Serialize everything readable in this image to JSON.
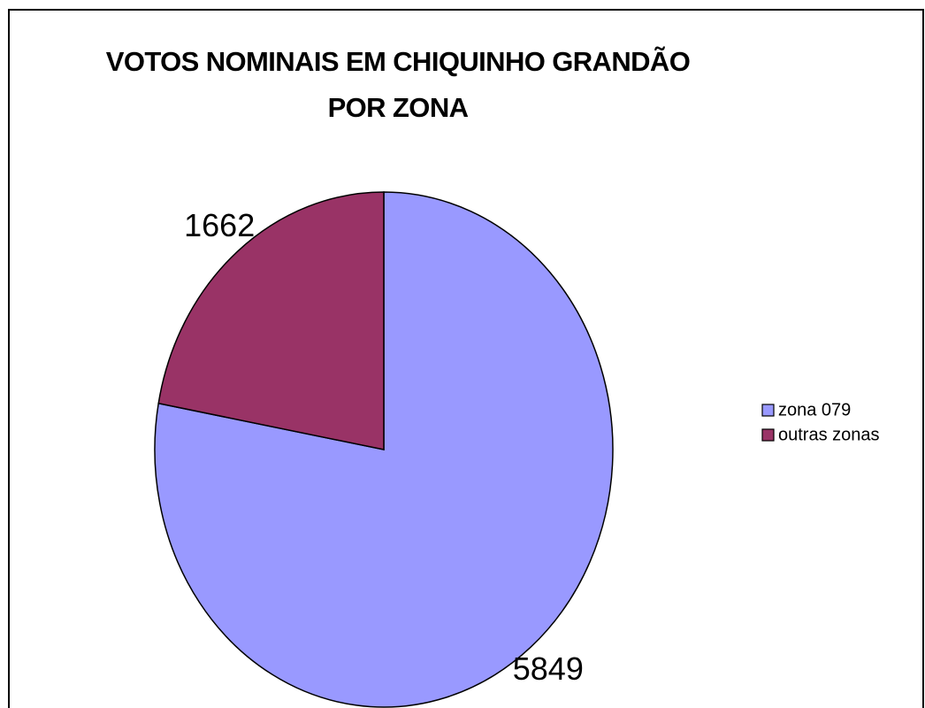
{
  "chart_data": {
    "type": "pie",
    "title": "VOTOS NOMINAIS EM CHIQUINHO GRANDÃO POR ZONA",
    "categories": [
      "zona 079",
      "outras zonas"
    ],
    "values": [
      5849,
      1662
    ],
    "colors": [
      "#9999ff",
      "#993366"
    ],
    "legend": "right"
  }
}
